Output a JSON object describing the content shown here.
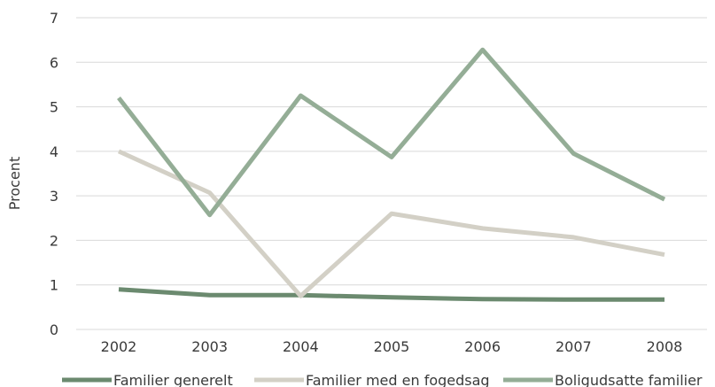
{
  "chart_data": {
    "type": "line",
    "categories": [
      "2002",
      "2003",
      "2004",
      "2005",
      "2006",
      "2007",
      "2008"
    ],
    "ylabel": "Procent",
    "xlabel": "",
    "ylim": [
      0,
      7
    ],
    "yticks": [
      0,
      1,
      2,
      3,
      4,
      5,
      6,
      7
    ],
    "grid": true,
    "legend_position": "bottom",
    "series": [
      {
        "name": "Familier generelt",
        "color": "#6b8a6f",
        "values": [
          0.9,
          0.77,
          0.77,
          0.72,
          0.68,
          0.67,
          0.67
        ]
      },
      {
        "name": "Familier med en fogedsag",
        "color": "#d3d0c6",
        "values": [
          4.0,
          3.07,
          0.75,
          2.6,
          2.27,
          2.07,
          1.68
        ]
      },
      {
        "name": "Boligudsatte familier",
        "color": "#94ad96",
        "values": [
          5.2,
          2.57,
          5.25,
          3.87,
          6.28,
          3.95,
          2.92
        ]
      }
    ]
  }
}
